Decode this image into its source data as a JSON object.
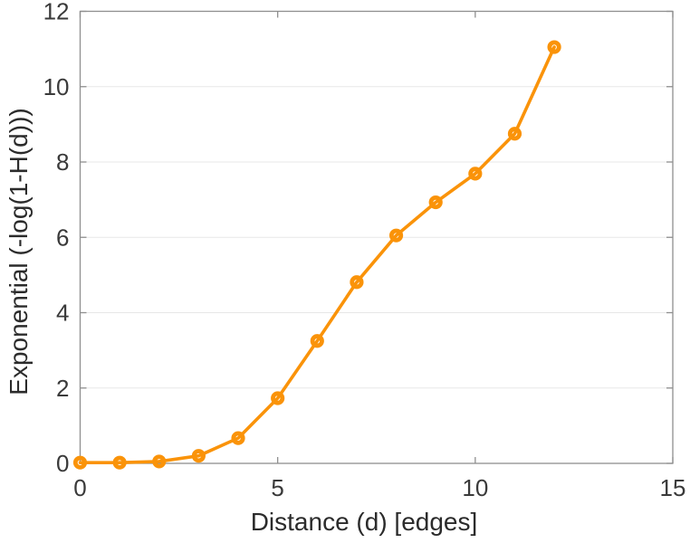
{
  "chart_data": {
    "type": "line",
    "title": "",
    "xlabel": "Distance (d) [edges]",
    "ylabel": "Exponential (-log(1-H(d)))",
    "x": [
      0,
      1,
      2,
      3,
      4,
      5,
      6,
      7,
      8,
      9,
      10,
      11,
      12
    ],
    "y": [
      0.02,
      0.02,
      0.05,
      0.2,
      0.67,
      1.73,
      3.25,
      4.81,
      6.05,
      6.93,
      7.69,
      8.75,
      11.05
    ],
    "xlim": [
      0,
      15
    ],
    "ylim": [
      0,
      12
    ],
    "xticks": [
      0,
      5,
      10,
      15
    ],
    "yticks": [
      0,
      2,
      4,
      6,
      8,
      10,
      12
    ],
    "xtick_labels": [
      "0",
      "5",
      "10",
      "15"
    ],
    "ytick_labels": [
      "0",
      "2",
      "4",
      "6",
      "8",
      "10",
      "12"
    ],
    "grid": "horizontal",
    "legend": "none",
    "marker": "o",
    "colors": {
      "line": "#FA9309",
      "frame": "#8f8f8f",
      "grid": "#e7e7e7",
      "tick_text": "#3a3a3a",
      "label_text": "#2b2b2b"
    }
  }
}
